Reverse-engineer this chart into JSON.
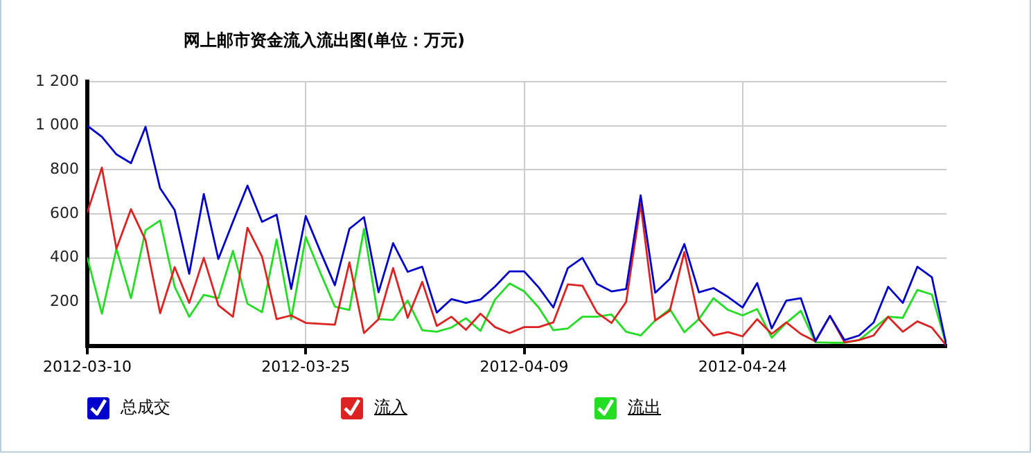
{
  "chart_data": {
    "type": "line",
    "title": "网上邮市资金流入流出图(单位：万元)",
    "x": [
      "2012-03-10",
      "2012-03-11",
      "2012-03-12",
      "2012-03-13",
      "2012-03-14",
      "2012-03-15",
      "2012-03-16",
      "2012-03-17",
      "2012-03-18",
      "2012-03-19",
      "2012-03-20",
      "2012-03-21",
      "2012-03-22",
      "2012-03-23",
      "2012-03-24",
      "2012-03-25",
      "2012-03-26",
      "2012-03-27",
      "2012-03-28",
      "2012-03-29",
      "2012-03-30",
      "2012-03-31",
      "2012-04-01",
      "2012-04-02",
      "2012-04-03",
      "2012-04-04",
      "2012-04-05",
      "2012-04-06",
      "2012-04-07",
      "2012-04-08",
      "2012-04-09",
      "2012-04-10",
      "2012-04-11",
      "2012-04-12",
      "2012-04-13",
      "2012-04-14",
      "2012-04-15",
      "2012-04-16",
      "2012-04-17",
      "2012-04-18",
      "2012-04-19",
      "2012-04-20",
      "2012-04-21",
      "2012-04-22",
      "2012-04-23",
      "2012-04-24",
      "2012-04-25",
      "2012-04-26",
      "2012-04-27",
      "2012-04-28",
      "2012-04-29",
      "2012-04-30",
      "2012-05-01",
      "2012-05-02",
      "2012-05-03",
      "2012-05-04",
      "2012-05-05",
      "2012-05-06",
      "2012-05-07",
      "2012-05-08"
    ],
    "series": [
      {
        "name": "总成交",
        "color": "#0000cc",
        "values": [
          1000,
          950,
          870,
          830,
          995,
          716,
          617,
          328,
          690,
          395,
          564,
          728,
          564,
          596,
          259,
          590,
          430,
          276,
          532,
          585,
          244,
          467,
          337,
          360,
          152,
          213,
          196,
          211,
          270,
          339,
          339,
          266,
          175,
          354,
          400,
          282,
          248,
          259,
          684,
          242,
          305,
          463,
          244,
          263,
          223,
          175,
          286,
          80,
          206,
          217,
          23,
          137,
          27,
          48,
          107,
          269,
          196,
          360,
          312,
          2
        ]
      },
      {
        "name": "流入",
        "color": "#dd2222",
        "values": [
          606,
          810,
          442,
          621,
          480,
          149,
          358,
          196,
          400,
          185,
          133,
          537,
          406,
          122,
          139,
          105,
          101,
          97,
          380,
          59,
          122,
          354,
          128,
          291,
          91,
          133,
          74,
          147,
          86,
          59,
          86,
          86,
          107,
          280,
          274,
          152,
          105,
          200,
          644,
          116,
          160,
          427,
          122,
          48,
          63,
          44,
          122,
          55,
          107,
          55,
          21,
          137,
          17,
          27,
          48,
          133,
          65,
          112,
          84,
          2
        ]
      },
      {
        "name": "流出",
        "color": "#22dd22",
        "values": [
          402,
          147,
          442,
          217,
          526,
          570,
          269,
          133,
          232,
          217,
          432,
          192,
          154,
          484,
          122,
          495,
          333,
          179,
          164,
          532,
          122,
          118,
          206,
          72,
          65,
          84,
          126,
          69,
          211,
          284,
          248,
          175,
          72,
          80,
          133,
          133,
          143,
          65,
          48,
          116,
          168,
          63,
          122,
          217,
          164,
          139,
          168,
          38,
          105,
          160,
          17,
          15,
          15,
          27,
          80,
          133,
          128,
          255,
          234,
          2
        ]
      }
    ],
    "xlim": [
      "2012-03-10",
      "2012-05-08"
    ],
    "xticks": [
      "2012-03-10",
      "2012-03-25",
      "2012-04-09",
      "2012-04-24"
    ],
    "ylim": [
      0,
      1200
    ],
    "yticks": [
      200,
      400,
      600,
      800,
      {
        "value": 1000,
        "label": "1 000"
      },
      {
        "value": 1200,
        "label": "1 200"
      }
    ],
    "grid": true,
    "legend": "bottom",
    "marker": "none",
    "line_style": "solid"
  }
}
